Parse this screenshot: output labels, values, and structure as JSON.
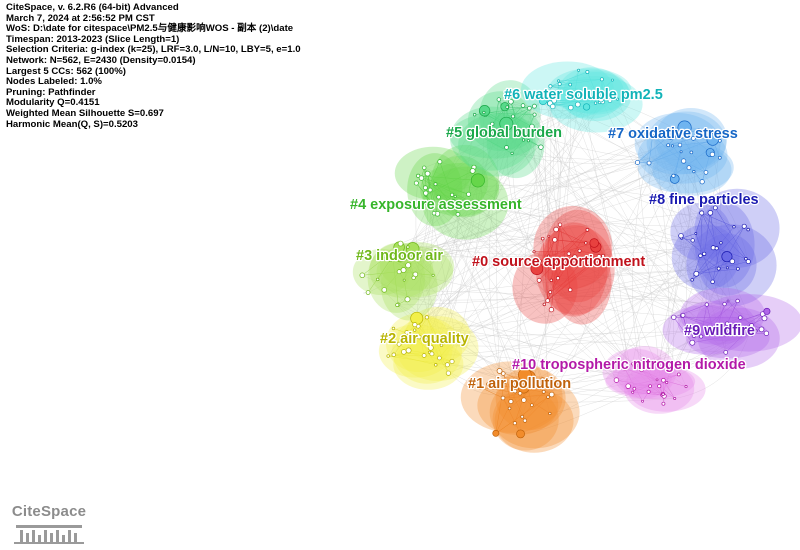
{
  "info": {
    "lines": [
      "CiteSpace, v. 6.2.R6 (64-bit) Advanced",
      "March 7, 2024 at 2:56:52 PM CST",
      "WoS: D:\\date for citespace\\PM2.5与健康影响WOS - 副本 (2)\\date",
      "Timespan: 2013-2023 (Slice Length=1)",
      "Selection Criteria: g-index (k=25), LRF=3.0, L/N=10, LBY=5, e=1.0",
      "Network: N=562, E=2430 (Density=0.0154)",
      "Largest 5 CCs: 562 (100%)",
      "Nodes Labeled: 1.0%",
      "Pruning: Pathfinder",
      "Modularity Q=0.4151",
      "Weighted Mean Silhouette S=0.697",
      "Harmonic Mean(Q, S)=0.5203"
    ]
  },
  "clusters": [
    {
      "label": "#0 source apportionment",
      "color": "#c0111b",
      "fill": "#e8413f",
      "icon": "cluster-0"
    },
    {
      "label": "#1 air pollution",
      "color": "#c0620a",
      "fill": "#f28c2b",
      "icon": "cluster-1"
    },
    {
      "label": "#2 air quality",
      "color": "#b8b400",
      "fill": "#f2f04a",
      "icon": "cluster-2"
    },
    {
      "label": "#3 indoor air",
      "color": "#6fb81a",
      "fill": "#a8e05c",
      "icon": "cluster-3"
    },
    {
      "label": "#4 exposure assessment",
      "color": "#36b52a",
      "fill": "#66d64a",
      "icon": "cluster-4"
    },
    {
      "label": "#5 global burden",
      "color": "#1aa84a",
      "fill": "#57d98a",
      "icon": "cluster-5"
    },
    {
      "label": "#6 water soluble pm2.5",
      "color": "#11b3b8",
      "fill": "#5fe6e0",
      "icon": "cluster-6"
    },
    {
      "label": "#7 oxidative stress",
      "color": "#1566c6",
      "fill": "#6fb4f0",
      "icon": "cluster-7"
    },
    {
      "label": "#8 fine particles",
      "color": "#1a1ab0",
      "fill": "#6a6ae6",
      "icon": "cluster-8"
    },
    {
      "label": "#9 wildfire",
      "color": "#6a1ab8",
      "fill": "#b066e8",
      "icon": "cluster-9"
    },
    {
      "label": "#10 tropospheric nitrogen dioxide",
      "color": "#b319a8",
      "fill": "#e68ae8",
      "icon": "cluster-10"
    }
  ],
  "logo": {
    "text": "CiteSpace"
  }
}
